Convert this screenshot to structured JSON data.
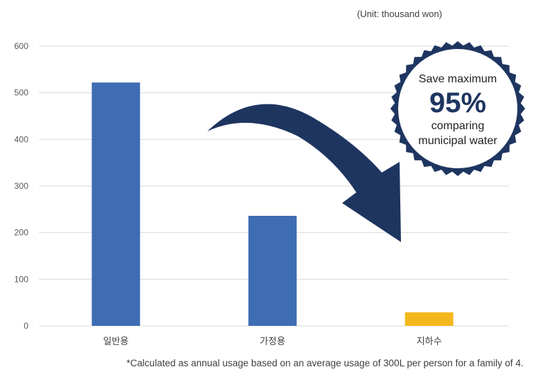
{
  "unit_note": "(Unit: thousand won)",
  "footnote": "*Calculated as annual usage based on an average usage of 300L per person for a family of 4.",
  "badge": {
    "line1": "Save maximum",
    "value": "95%",
    "line2": "comparing",
    "line3": "municipal water"
  },
  "colors": {
    "bar_main": "#3F6DB3",
    "bar_highlight": "#F4B81C",
    "navy": "#1E3560",
    "grid": "#D9D9D9"
  },
  "chart_data": {
    "type": "bar",
    "categories": [
      "일반용",
      "가정용",
      "지하수"
    ],
    "values": [
      522,
      236,
      29
    ],
    "ylim": [
      0,
      600
    ],
    "yticks": [
      "0",
      "100",
      "200",
      "300",
      "400",
      "500",
      "600"
    ],
    "grid": true,
    "title": "",
    "xlabel": "",
    "ylabel": ""
  }
}
